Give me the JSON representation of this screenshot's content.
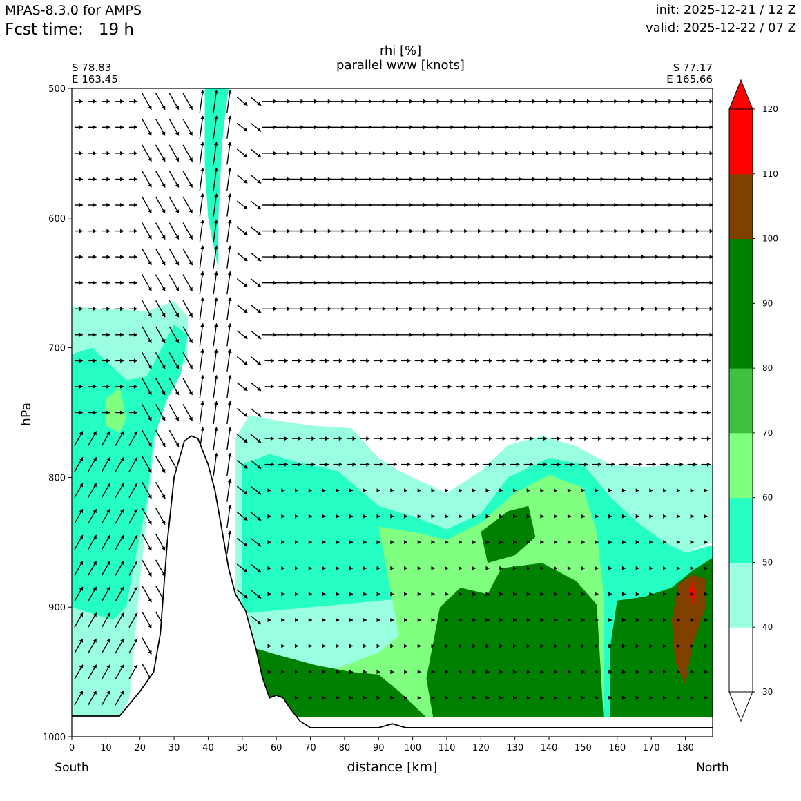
{
  "header": {
    "model": "MPAS-8.3.0 for AMPS",
    "fcst_label": "Fcst time:",
    "fcst_value": "19 h",
    "init": "init: 2025-12-21 / 12 Z",
    "valid": "valid: 2025-12-22 / 07 Z"
  },
  "chart_data": {
    "type": "contour",
    "title": "rhi [%]",
    "subtitle": "parallel www [knots]",
    "left_end": {
      "lat": "S 78.83",
      "lon": "E 163.45"
    },
    "right_end": {
      "lat": "S 77.17",
      "lon": "E 165.66"
    },
    "xlabel": "distance [km]",
    "ylabel": "hPa",
    "x_start_label": "South",
    "x_end_label": "North",
    "xlim": [
      0,
      188
    ],
    "ylim": [
      1000,
      500
    ],
    "x_ticks": [
      0,
      10,
      20,
      30,
      40,
      50,
      60,
      70,
      80,
      90,
      100,
      110,
      120,
      130,
      140,
      150,
      160,
      170,
      180
    ],
    "y_ticks": [
      500,
      600,
      700,
      800,
      900,
      1000
    ],
    "colorbar": {
      "levels": [
        30,
        40,
        50,
        60,
        70,
        80,
        90,
        100,
        110,
        120
      ],
      "colors": [
        "#ffffff",
        "#99ffe0",
        "#26ffc4",
        "#80ff80",
        "#40c040",
        "#008000",
        "#008000",
        "#804000",
        "#ff0000"
      ],
      "extend": "both"
    },
    "terrain": [
      [
        0,
        984
      ],
      [
        14,
        984
      ],
      [
        20,
        965
      ],
      [
        24,
        950
      ],
      [
        26,
        920
      ],
      [
        28,
        850
      ],
      [
        30,
        800
      ],
      [
        33,
        772
      ],
      [
        35,
        768
      ],
      [
        37,
        770
      ],
      [
        40,
        790
      ],
      [
        42,
        810
      ],
      [
        44,
        840
      ],
      [
        46,
        870
      ],
      [
        48,
        890
      ],
      [
        51,
        903
      ],
      [
        54,
        932
      ],
      [
        56,
        955
      ],
      [
        58,
        970
      ],
      [
        60,
        968
      ],
      [
        62,
        970
      ],
      [
        64,
        978
      ],
      [
        67,
        988
      ],
      [
        70,
        993
      ],
      [
        90,
        993
      ],
      [
        94,
        990
      ],
      [
        98,
        993
      ],
      [
        188,
        993
      ]
    ],
    "rhi_regions": [
      {
        "level": 40,
        "points": [
          [
            0,
            668
          ],
          [
            8,
            670
          ],
          [
            14,
            670
          ],
          [
            22,
            672
          ],
          [
            30,
            664
          ],
          [
            34,
            676
          ],
          [
            34,
            710
          ],
          [
            30,
            720
          ],
          [
            26,
            750
          ],
          [
            24,
            780
          ],
          [
            20,
            880
          ],
          [
            18,
            940
          ],
          [
            17,
            970
          ],
          [
            14,
            985
          ],
          [
            0,
            985
          ]
        ]
      },
      {
        "level": 50,
        "points": [
          [
            0,
            705
          ],
          [
            6,
            700
          ],
          [
            12,
            715
          ],
          [
            16,
            725
          ],
          [
            22,
            722
          ],
          [
            30,
            682
          ],
          [
            34,
            690
          ],
          [
            32,
            720
          ],
          [
            28,
            740
          ],
          [
            24,
            770
          ],
          [
            22,
            820
          ],
          [
            18,
            870
          ],
          [
            16,
            900
          ],
          [
            12,
            910
          ],
          [
            6,
            905
          ],
          [
            0,
            900
          ]
        ]
      },
      {
        "level": 60,
        "points": [
          [
            10,
            740
          ],
          [
            14,
            730
          ],
          [
            16,
            755
          ],
          [
            14,
            765
          ],
          [
            10,
            760
          ]
        ]
      },
      {
        "level": 40,
        "points": [
          [
            48,
            770
          ],
          [
            52,
            752
          ],
          [
            60,
            756
          ],
          [
            70,
            760
          ],
          [
            82,
            762
          ],
          [
            90,
            785
          ],
          [
            96,
            795
          ],
          [
            100,
            800
          ],
          [
            110,
            812
          ],
          [
            120,
            795
          ],
          [
            128,
            775
          ],
          [
            138,
            768
          ],
          [
            148,
            776
          ],
          [
            158,
            790
          ],
          [
            168,
            792
          ],
          [
            178,
            790
          ],
          [
            188,
            790
          ],
          [
            188,
            850
          ],
          [
            176,
            862
          ],
          [
            168,
            870
          ],
          [
            162,
            880
          ],
          [
            158,
            895
          ],
          [
            156,
            985
          ],
          [
            0,
            985
          ],
          [
            0,
            985
          ],
          [
            44,
            985
          ],
          [
            48,
            890
          ]
        ]
      },
      {
        "level": 50,
        "points": [
          [
            50,
            790
          ],
          [
            58,
            782
          ],
          [
            66,
            788
          ],
          [
            78,
            795
          ],
          [
            90,
            822
          ],
          [
            100,
            830
          ],
          [
            110,
            840
          ],
          [
            120,
            828
          ],
          [
            128,
            800
          ],
          [
            140,
            785
          ],
          [
            150,
            790
          ],
          [
            158,
            815
          ],
          [
            166,
            835
          ],
          [
            174,
            850
          ],
          [
            180,
            858
          ],
          [
            188,
            852
          ],
          [
            188,
            985
          ],
          [
            156,
            985
          ],
          [
            156,
            902
          ],
          [
            152,
            880
          ],
          [
            50,
            905
          ]
        ]
      },
      {
        "level": 60,
        "points": [
          [
            90,
            838
          ],
          [
            100,
            842
          ],
          [
            110,
            848
          ],
          [
            120,
            835
          ],
          [
            130,
            812
          ],
          [
            140,
            798
          ],
          [
            150,
            808
          ],
          [
            154,
            842
          ],
          [
            156,
            890
          ],
          [
            156,
            985
          ],
          [
            50,
            985
          ],
          [
            56,
            960
          ],
          [
            70,
            955
          ],
          [
            80,
            945
          ],
          [
            90,
            935
          ],
          [
            96,
            922
          ]
        ]
      },
      {
        "level": 80,
        "points": [
          [
            54,
            932
          ],
          [
            62,
            938
          ],
          [
            72,
            945
          ],
          [
            82,
            950
          ],
          [
            90,
            952
          ],
          [
            96,
            965
          ],
          [
            104,
            985
          ],
          [
            56,
            985
          ]
        ]
      },
      {
        "level": 80,
        "points": [
          [
            108,
            900
          ],
          [
            114,
            885
          ],
          [
            122,
            890
          ],
          [
            126,
            870
          ],
          [
            138,
            866
          ],
          [
            148,
            880
          ],
          [
            154,
            898
          ],
          [
            156,
            985
          ],
          [
            106,
            985
          ],
          [
            104,
            955
          ]
        ]
      },
      {
        "level": 80,
        "points": [
          [
            120,
            842
          ],
          [
            128,
            826
          ],
          [
            134,
            822
          ],
          [
            136,
            846
          ],
          [
            130,
            860
          ],
          [
            122,
            866
          ]
        ]
      },
      {
        "level": 80,
        "points": [
          [
            160,
            895
          ],
          [
            168,
            892
          ],
          [
            176,
            885
          ],
          [
            182,
            872
          ],
          [
            188,
            862
          ],
          [
            188,
            985
          ],
          [
            158,
            985
          ],
          [
            158,
            930
          ]
        ]
      },
      {
        "level": 100,
        "points": [
          [
            176,
            910
          ],
          [
            178,
            882
          ],
          [
            182,
            875
          ],
          [
            186,
            878
          ],
          [
            186,
            900
          ],
          [
            182,
            930
          ],
          [
            180,
            960
          ],
          [
            177,
            942
          ]
        ]
      },
      {
        "level": 110,
        "points": [
          [
            181,
            888
          ],
          [
            182,
            880
          ],
          [
            183,
            890
          ],
          [
            182,
            898
          ]
        ]
      },
      {
        "level": 50,
        "points": [
          [
            39,
            500
          ],
          [
            46,
            500
          ],
          [
            45,
            520
          ],
          [
            44,
            545
          ],
          [
            43,
            600
          ],
          [
            43,
            640
          ],
          [
            40,
            600
          ],
          [
            39,
            560
          ]
        ]
      }
    ],
    "vector_rows_hpa": [
      510,
      530,
      550,
      570,
      590,
      610,
      630,
      650,
      670,
      690,
      710,
      730,
      750,
      770,
      790,
      810,
      830,
      850,
      870,
      890,
      910,
      930,
      950,
      970,
      990
    ],
    "vector_cols_km": [
      2,
      6,
      10,
      14,
      18,
      22,
      26,
      30,
      34,
      38,
      42,
      46,
      50,
      54,
      58,
      62,
      66,
      70,
      74,
      78,
      82,
      86,
      90,
      94,
      98,
      102,
      106,
      110,
      114,
      118,
      122,
      126,
      130,
      134,
      138,
      142,
      146,
      150,
      154,
      158,
      162,
      166,
      170,
      174,
      178,
      182,
      186
    ]
  }
}
